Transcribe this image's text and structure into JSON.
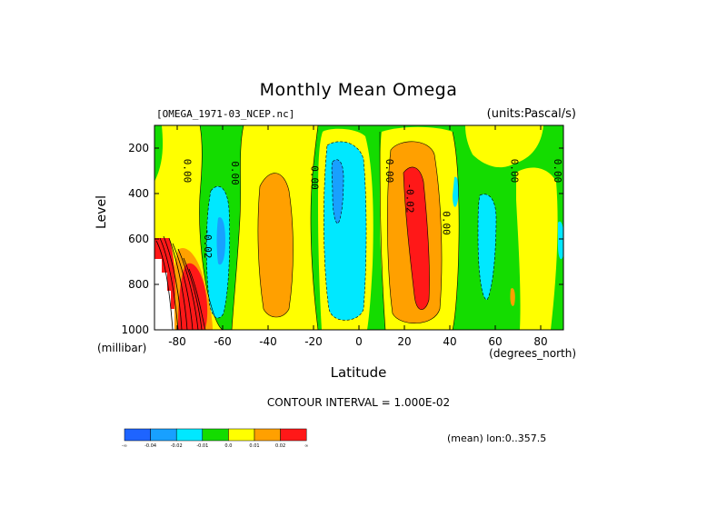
{
  "chart_data": {
    "type": "heatmap",
    "title": "Monthly Mean Omega",
    "source_label": "[OMEGA_1971-03_NCEP.nc]",
    "units_label": "(units:Pascal/s)",
    "xlabel": "Latitude",
    "x_unit": "(degrees_north)",
    "ylabel": "Level",
    "y_unit": "(millibar)",
    "xlim": [
      -90,
      90
    ],
    "ylim": [
      1000,
      100
    ],
    "x_ticks": [
      "-80",
      "-60",
      "-40",
      "-20",
      "0",
      "20",
      "40",
      "60",
      "80"
    ],
    "x_tick_values": [
      -80,
      -60,
      -40,
      -20,
      0,
      20,
      40,
      60,
      80
    ],
    "y_ticks": [
      "200",
      "400",
      "600",
      "800",
      "1000"
    ],
    "y_tick_values": [
      200,
      400,
      600,
      800,
      1000
    ],
    "contour_interval_text": "CONTOUR INTERVAL = 1.000E-02",
    "mean_text": "(mean) lon:0..357.5",
    "contour_labels": [
      {
        "text": "0.00",
        "lat": -77,
        "lev": 300
      },
      {
        "text": "0.00",
        "lat": -56,
        "lev": 310
      },
      {
        "text": "-0.02",
        "lat": -68,
        "lev": 620
      },
      {
        "text": "0.00",
        "lat": -21,
        "lev": 330
      },
      {
        "text": "0.00",
        "lat": 12,
        "lev": 300
      },
      {
        "text": "-0.02",
        "lat": 21,
        "lev": 420
      },
      {
        "text": "0.00",
        "lat": 37,
        "lev": 530
      },
      {
        "text": "0.00",
        "lat": 67,
        "lev": 300
      },
      {
        "text": "0.00",
        "lat": 86,
        "lev": 300
      }
    ],
    "colorbar": {
      "colors": [
        "#1e64ff",
        "#18a0ff",
        "#00e8ff",
        "#14dc00",
        "#ffff00",
        "#ffa000",
        "#ff1818"
      ],
      "labels": [
        "-∞",
        "-0.04",
        "-0.02",
        "-0.01",
        "0.0",
        "0.01",
        "0.02",
        "∞"
      ]
    },
    "grid": false,
    "legend": "bottom-left colorbar"
  }
}
